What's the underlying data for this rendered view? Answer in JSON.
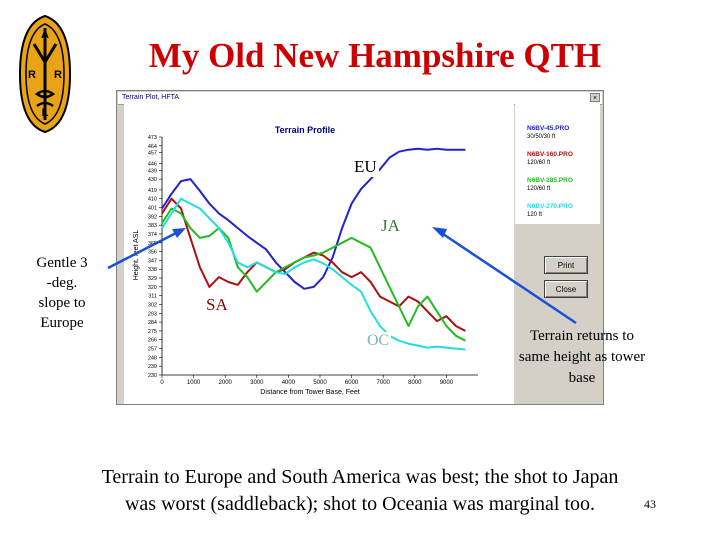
{
  "slide": {
    "title": "My Old New Hampshire QTH",
    "caption_line1": "Terrain to Europe and South America was best; the shot to Japan",
    "caption_line2": "was worst (saddleback); shot to Oceania was marginal too.",
    "page_number": "43",
    "logo_letters": [
      "A",
      "R",
      "R",
      "L"
    ],
    "callout_left": [
      "Gentle 3",
      "-deg.",
      "slope to",
      "Europe"
    ],
    "callout_right": [
      "Terrain returns to",
      "same height as tower",
      "base"
    ]
  },
  "window": {
    "title": "Terrain Plot, HFTA",
    "close_glyph": "×",
    "print_label": "Print",
    "close_label": "Close"
  },
  "annotations": {
    "eu": "EU",
    "ja": "JA",
    "sa": "SA",
    "oc": "OC"
  },
  "colors": {
    "title_red": "#cc0000",
    "eu_line": "#2222cc",
    "sa_line": "#aa1111",
    "ja_line": "#22bb22",
    "oc_line": "#22dddd",
    "arrow": "#1a4fd6",
    "window_grey": "#d4d0c8"
  },
  "chart_data": {
    "type": "line",
    "title": "Terrain Profile",
    "xlabel": "Distance from Tower Base, Feet",
    "ylabel": "Height, feet ASL",
    "xlim": [
      0,
      10000
    ],
    "ylim": [
      230,
      473
    ],
    "x_ticks": [
      "0",
      "1000",
      "2000",
      "3000",
      "4000",
      "5000",
      "6000",
      "7000",
      "8000",
      "9000"
    ],
    "y_ticks": [
      "473",
      "464",
      "457",
      "446",
      "439",
      "430",
      "419",
      "410",
      "401",
      "392",
      "383",
      "374",
      "365",
      "356",
      "347",
      "338",
      "329",
      "320",
      "311",
      "302",
      "293",
      "284",
      "275",
      "266",
      "257",
      "248",
      "239",
      "230"
    ],
    "grid": false,
    "legend_position": "right",
    "series": [
      {
        "name": "N6BV-45.PRO",
        "sub": "30/50/30 ft",
        "color": "#2222cc",
        "x": [
          0,
          300,
          600,
          900,
          1200,
          1500,
          1800,
          2100,
          2400,
          2700,
          3000,
          3300,
          3600,
          3900,
          4200,
          4500,
          4800,
          5100,
          5400,
          5700,
          6000,
          6300,
          6600,
          6900,
          7200,
          7500,
          7800,
          8100,
          8400,
          8700,
          9000,
          9300,
          9600
        ],
        "y": [
          400,
          415,
          428,
          430,
          418,
          405,
          395,
          388,
          380,
          372,
          365,
          358,
          345,
          335,
          325,
          318,
          320,
          330,
          350,
          380,
          405,
          420,
          430,
          440,
          452,
          458,
          460,
          461,
          460,
          461,
          460,
          460,
          460
        ]
      },
      {
        "name": "N6BV-160.PRO",
        "sub": "120/60 ft",
        "color": "#aa1111",
        "x": [
          0,
          300,
          600,
          900,
          1200,
          1500,
          1800,
          2100,
          2400,
          2700,
          3000,
          3300,
          3600,
          3900,
          4200,
          4500,
          4800,
          5100,
          5400,
          5700,
          6000,
          6300,
          6600,
          6900,
          7200,
          7500,
          7800,
          8100,
          8400,
          8700,
          9000,
          9300,
          9600
        ],
        "y": [
          395,
          410,
          400,
          370,
          340,
          320,
          330,
          325,
          322,
          335,
          345,
          340,
          335,
          338,
          345,
          350,
          355,
          352,
          345,
          335,
          330,
          335,
          325,
          310,
          305,
          300,
          310,
          305,
          295,
          285,
          290,
          280,
          275
        ]
      },
      {
        "name": "N6BV-285.PRO",
        "sub": "120/60 ft",
        "color": "#22bb22",
        "x": [
          0,
          300,
          600,
          900,
          1200,
          1500,
          1800,
          2100,
          2400,
          2700,
          3000,
          3300,
          3600,
          3900,
          4200,
          4500,
          4800,
          5100,
          5400,
          5700,
          6000,
          6300,
          6600,
          6900,
          7200,
          7500,
          7800,
          8100,
          8400,
          8700,
          9000,
          9300,
          9600
        ],
        "y": [
          385,
          400,
          395,
          380,
          370,
          372,
          380,
          370,
          340,
          330,
          315,
          325,
          335,
          340,
          345,
          350,
          352,
          355,
          360,
          365,
          370,
          365,
          360,
          340,
          320,
          300,
          280,
          300,
          310,
          295,
          280,
          270,
          265
        ]
      },
      {
        "name": "N6BV-270.PRO",
        "sub": "120 ft",
        "color": "#22dddd",
        "x": [
          0,
          300,
          600,
          900,
          1200,
          1500,
          1800,
          2100,
          2400,
          2700,
          3000,
          3300,
          3600,
          3900,
          4200,
          4500,
          4800,
          5100,
          5400,
          5700,
          6000,
          6300,
          6600,
          6900,
          7200,
          7500,
          7800,
          8100,
          8400,
          8700,
          9000,
          9300,
          9600
        ],
        "y": [
          380,
          395,
          410,
          405,
          400,
          390,
          380,
          365,
          345,
          340,
          345,
          340,
          335,
          333,
          340,
          345,
          348,
          344,
          338,
          330,
          322,
          315,
          295,
          280,
          270,
          265,
          262,
          260,
          258,
          259,
          258,
          257,
          256
        ]
      }
    ]
  }
}
